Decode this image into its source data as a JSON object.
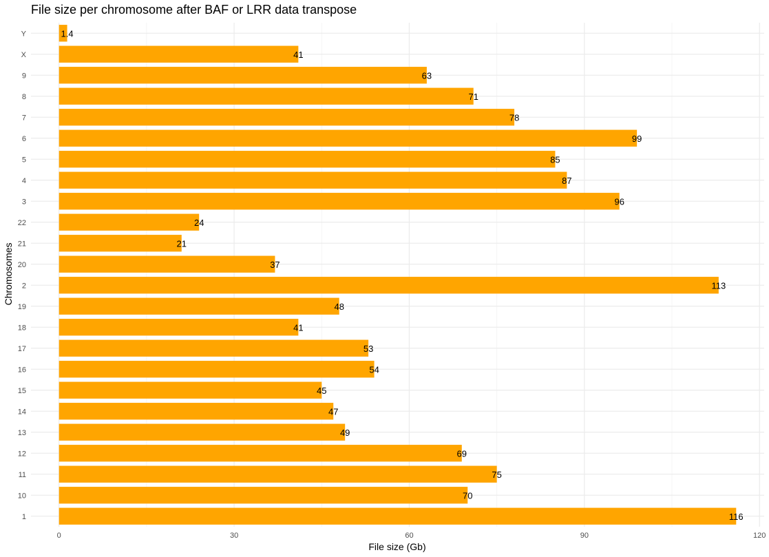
{
  "chart_data": {
    "type": "bar",
    "orientation": "horizontal",
    "title": "File size per chromosome after BAF or LRR data transpose",
    "xlabel": "File size (Gb)",
    "ylabel": "Chromosomes",
    "xlim": [
      -4.8,
      120.8
    ],
    "x_ticks": [
      0,
      30,
      60,
      90,
      120
    ],
    "grid": true,
    "bar_color": "#FFA500",
    "categories": [
      "1",
      "10",
      "11",
      "12",
      "13",
      "14",
      "15",
      "16",
      "17",
      "18",
      "19",
      "2",
      "20",
      "21",
      "22",
      "3",
      "4",
      "5",
      "6",
      "7",
      "8",
      "9",
      "X",
      "Y"
    ],
    "values": [
      116,
      70,
      75,
      69,
      49,
      47,
      45,
      54,
      53,
      41,
      48,
      113,
      37,
      21,
      24,
      96,
      87,
      85,
      99,
      78,
      71,
      63,
      41,
      1.4
    ],
    "data_labels": [
      "116",
      "70",
      "75",
      "69",
      "49",
      "47",
      "45",
      "54",
      "53",
      "41",
      "48",
      "113",
      "37",
      "21",
      "24",
      "96",
      "87",
      "85",
      "99",
      "78",
      "71",
      "63",
      "41",
      "1.4"
    ]
  }
}
